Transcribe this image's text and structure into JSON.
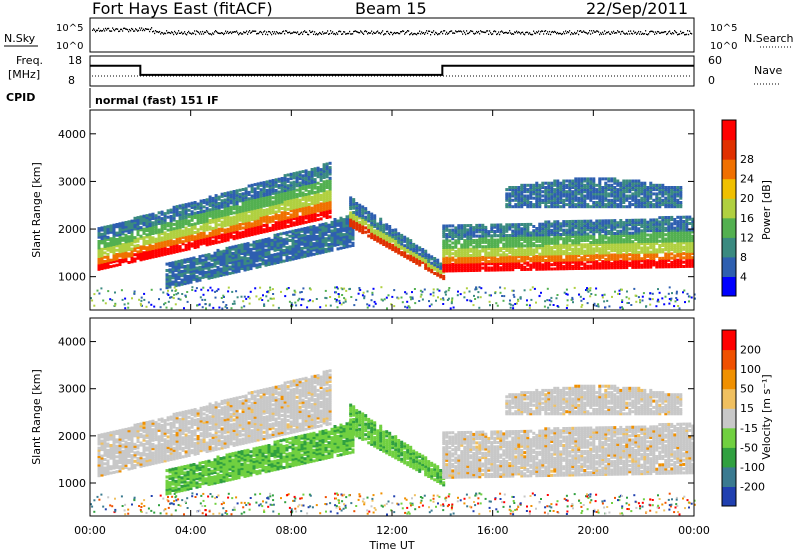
{
  "header": {
    "station": "Fort Hays East (fitACF)",
    "beam": "Beam 15",
    "date": "22/Sep/2011"
  },
  "strips": {
    "nsky_label": "N.Sky",
    "nsky_ticks": [
      "10^5",
      "10^0"
    ],
    "nsearch_label": "N.Search",
    "nsearch_ticks": [
      "10^5",
      "10^0"
    ],
    "freq_label": "Freq.",
    "freq_unit": "[MHz]",
    "freq_ticks": [
      "18",
      "8"
    ],
    "nave_label": "Nave",
    "nave_ticks": [
      "60",
      "0"
    ],
    "cpid_label": "CPID",
    "cpid_text": "normal (fast) 151 IF",
    "freq_steps": [
      {
        "t0": 0,
        "t1": 2.0,
        "f": 15
      },
      {
        "t0": 2.0,
        "t1": 14.0,
        "f": 11.5
      },
      {
        "t0": 14.0,
        "t1": 24,
        "f": 15
      }
    ]
  },
  "chart_data": [
    {
      "type": "heatmap",
      "name": "power",
      "ylabel": "Slant Range [km]",
      "xlabel": "Time UT",
      "ylim": [
        300,
        4500
      ],
      "xlim": [
        0,
        24
      ],
      "yticks": [
        "1000",
        "2000",
        "3000",
        "4000"
      ],
      "xticks": [
        "00:00",
        "04:00",
        "08:00",
        "12:00",
        "16:00",
        "20:00",
        "00:00"
      ],
      "colorbar": {
        "label": "Power [dB]",
        "ticks": [
          "4",
          "8",
          "12",
          "16",
          "20",
          "24",
          "28"
        ],
        "colors": [
          "#0000ff",
          "#2e5fb0",
          "#3a8a80",
          "#53b050",
          "#b0d040",
          "#f0c000",
          "#f07000",
          "#e03000",
          "#ff0000"
        ]
      }
    },
    {
      "type": "heatmap",
      "name": "velocity",
      "ylabel": "Slant Range [km]",
      "xlabel": "Time UT",
      "ylim": [
        300,
        4500
      ],
      "xlim": [
        0,
        24
      ],
      "yticks": [
        "1000",
        "2000",
        "3000",
        "4000"
      ],
      "xticks": [
        "00:00",
        "04:00",
        "08:00",
        "12:00",
        "16:00",
        "20:00",
        "00:00"
      ],
      "colorbar": {
        "label": "Velocity [m s⁻¹]",
        "ticks": [
          "200",
          "100",
          "50",
          "15",
          "-15",
          "-50",
          "-100",
          "-200"
        ],
        "colors": [
          "#2040b0",
          "#3a7a90",
          "#30a040",
          "#70d040",
          "#c8c8c8",
          "#f0c060",
          "#f09000",
          "#f05000",
          "#ff0000"
        ]
      }
    }
  ],
  "footer": {
    "xlabel": "Time UT"
  }
}
